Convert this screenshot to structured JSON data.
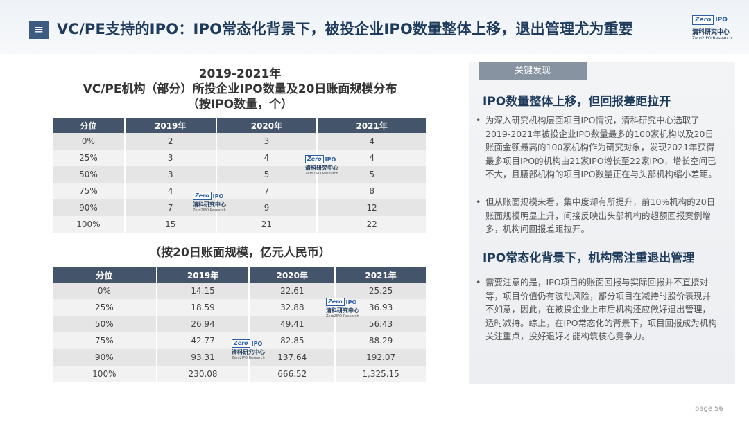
{
  "header": {
    "menu_icon": "≡",
    "title": "VC/PE支持的IPO：IPO常态化背景下，被投企业IPO数量整体上移，退出管理尤为重要"
  },
  "logo": {
    "zero": "Zero",
    "ipo": "IPO",
    "cn": "清科研究中心",
    "en": "Zero2IPO Research"
  },
  "table1": {
    "title_lines": [
      "2019-2021年",
      "VC/PE机构（部分）所投企业IPO数量及20日账面规模分布",
      "（按IPO数量，个）"
    ],
    "headers": [
      "分位",
      "2019年",
      "2020年",
      "2021年"
    ],
    "rows": [
      [
        "0%",
        "2",
        "3",
        "4"
      ],
      [
        "25%",
        "3",
        "4",
        "4"
      ],
      [
        "50%",
        "3",
        "5",
        "5"
      ],
      [
        "75%",
        "4",
        "7",
        "8"
      ],
      [
        "90%",
        "7",
        "9",
        "12"
      ],
      [
        "100%",
        "15",
        "21",
        "22"
      ]
    ]
  },
  "table2": {
    "title": "（按20日账面规模，亿元人民币）",
    "headers": [
      "分位",
      "2019年",
      "2020年",
      "2021年"
    ],
    "rows": [
      [
        "0%",
        "14.15",
        "22.61",
        "25.25"
      ],
      [
        "25%",
        "18.59",
        "32.88",
        "36.93"
      ],
      [
        "50%",
        "26.94",
        "49.41",
        "56.43"
      ],
      [
        "75%",
        "42.77",
        "82.85",
        "88.29"
      ],
      [
        "90%",
        "93.31",
        "137.64",
        "192.07"
      ],
      [
        "100%",
        "230.08",
        "666.52",
        "1,325.15"
      ]
    ]
  },
  "findings": {
    "tab_label": "关键发现",
    "heading1": "IPO数量整体上移，但回报差距拉开",
    "bullet1": "为深入研究机构层面项目IPO情况，清科研究中心选取了2019-2021年被投企业IPO数量最多的100家机构以及20日账面金额最高的100家机构作为研究对象，发现2021年获得最多项目IPO的机构由21家IPO增长至22家IPO，增长空间已不大，且腰部机构的项目IPO数量正在与头部机构缩小差距。",
    "bullet2": "但从账面规模来看，集中度却有所提升，前10%机构的20日账面规模明显上升，间接反映出头部机构的超额回报案例增多，机构间回报差距拉开。",
    "heading2": "IPO常态化背景下，机构需注重退出管理",
    "bullet3": "需要注意的是，IPO项目的账面回报与实际回报并不直接对等，项目价值仍有波动风险，部分项目在减持时股价表现并不如意，因此，在被投企业上市后机构还应做好退出管理，适时减持。综上，在IPO常态化的背景下，项目回报成为机构关注重点，投好退好才能构筑核心竞争力。"
  },
  "footer": {
    "page_label": "page",
    "page_number": "56"
  }
}
